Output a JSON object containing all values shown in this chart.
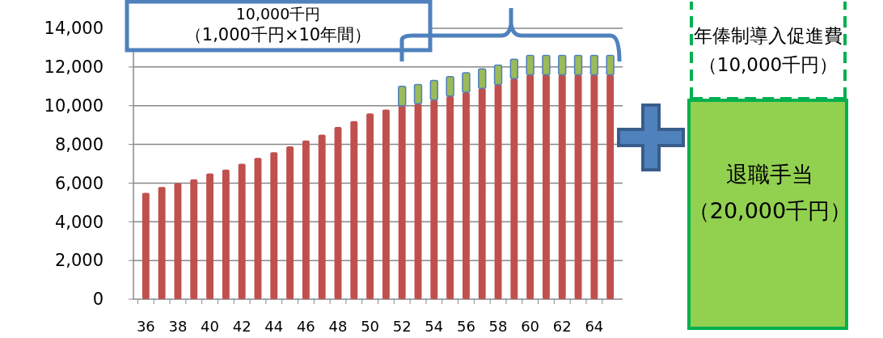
{
  "chart_data": {
    "type": "bar",
    "stacked": true,
    "categories": [
      "36",
      null,
      "38",
      null,
      "40",
      null,
      "42",
      null,
      "44",
      null,
      "46",
      null,
      "48",
      null,
      "50",
      null,
      "52",
      null,
      "54",
      null,
      "56",
      null,
      "58",
      null,
      "60",
      null,
      "62",
      null,
      "64",
      null
    ],
    "series": [
      {
        "color": "#c0504d",
        "values": [
          5500,
          5800,
          6000,
          6200,
          6500,
          6700,
          7000,
          7300,
          7600,
          7900,
          8200,
          8500,
          8900,
          9200,
          9600,
          9800,
          10000,
          10100,
          10300,
          10500,
          10700,
          10900,
          11100,
          11400,
          11600,
          11600,
          11600,
          11600,
          11600,
          11600
        ]
      },
      {
        "color": "#9bbb59",
        "values": [
          null,
          null,
          null,
          null,
          null,
          null,
          null,
          null,
          null,
          null,
          null,
          null,
          null,
          null,
          null,
          null,
          1000,
          1000,
          1000,
          1000,
          1000,
          1000,
          1000,
          1000,
          1000,
          1000,
          1000,
          1000,
          1000,
          1000
        ]
      }
    ],
    "ylim": [
      0,
      14000
    ],
    "yticks": [
      {
        "value": 0,
        "label": "0"
      },
      {
        "value": 2000,
        "label": "2,000"
      },
      {
        "value": 4000,
        "label": "4,000"
      },
      {
        "value": 6000,
        "label": "6,000"
      },
      {
        "value": 8000,
        "label": "8,000"
      },
      {
        "value": 10000,
        "label": "10,000"
      },
      {
        "value": 12000,
        "label": "12,000"
      },
      {
        "value": 14000,
        "label": "14,000"
      }
    ],
    "grid": "y",
    "annotations": [
      "10,000千円",
      "（1,000千円×10年間）",
      "年俸制導入促進費",
      "（10,000千円）",
      "退職手当",
      "（20,000千円）"
    ]
  }
}
